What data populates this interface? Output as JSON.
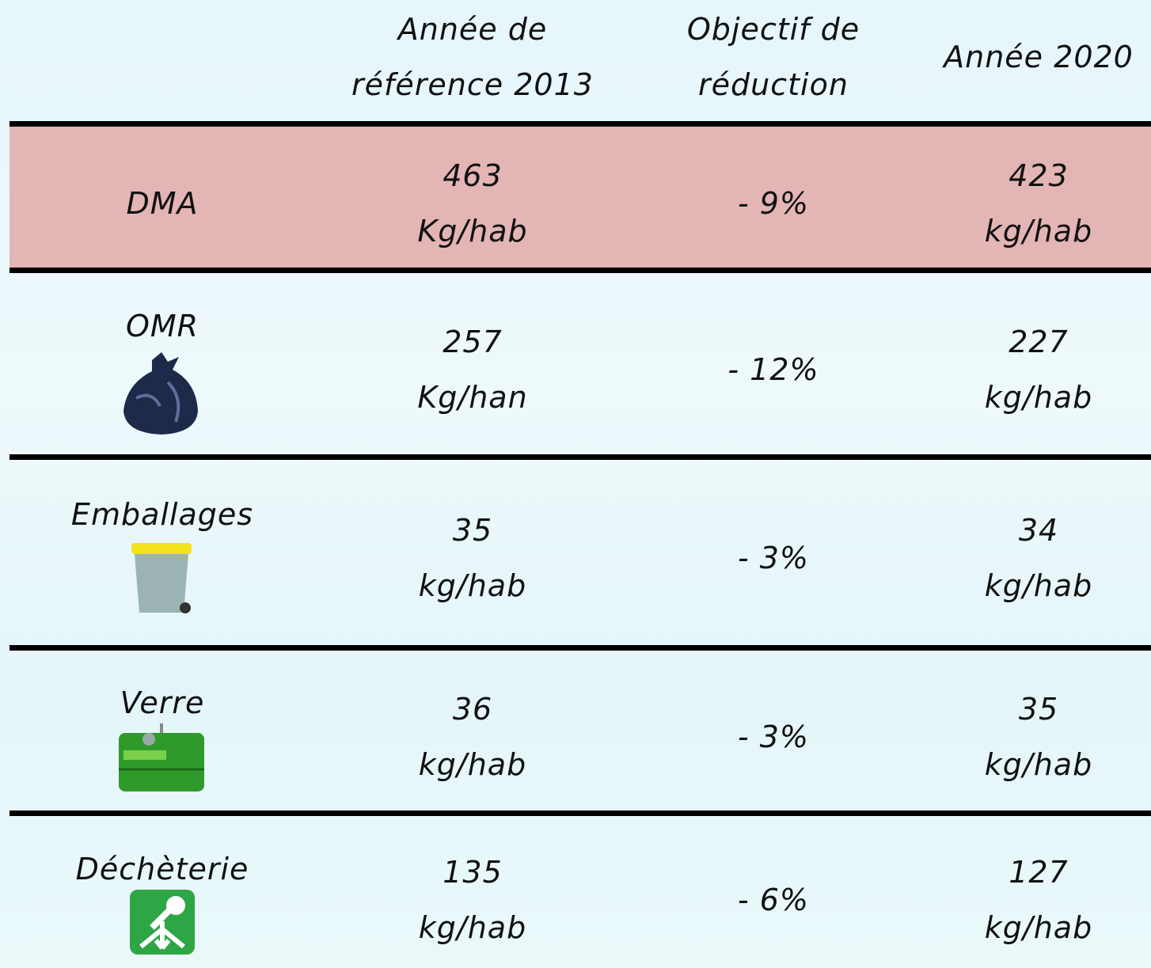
{
  "table": {
    "columns": [
      [
        "Année de",
        "référence 2013"
      ],
      [
        "Objectif de",
        "réduction"
      ],
      [
        "Année 2020"
      ]
    ],
    "rows": [
      {
        "label": "DMA",
        "cells": [
          [
            "463",
            "Kg/hab"
          ],
          [
            "- 9%"
          ],
          [
            "423",
            "kg/hab"
          ]
        ]
      },
      {
        "label": "OMR",
        "cells": [
          [
            "257",
            "Kg/han"
          ],
          [
            "- 12%"
          ],
          [
            "227",
            "kg/hab"
          ]
        ]
      },
      {
        "label": "Emballages",
        "cells": [
          [
            "35",
            "kg/hab"
          ],
          [
            "- 3%"
          ],
          [
            "34",
            "kg/hab"
          ]
        ]
      },
      {
        "label": "Verre",
        "cells": [
          [
            "36",
            "kg/hab"
          ],
          [
            "- 3%"
          ],
          [
            "35",
            "kg/hab"
          ]
        ]
      },
      {
        "label": "Déchèterie",
        "cells": [
          [
            "135",
            "kg/hab"
          ],
          [
            "- 6%"
          ],
          [
            "127",
            "kg/hab"
          ]
        ]
      }
    ]
  }
}
